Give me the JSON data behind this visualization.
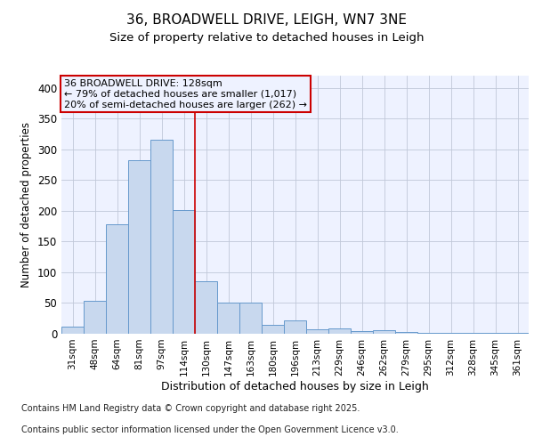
{
  "title1": "36, BROADWELL DRIVE, LEIGH, WN7 3NE",
  "title2": "Size of property relative to detached houses in Leigh",
  "xlabel": "Distribution of detached houses by size in Leigh",
  "ylabel": "Number of detached properties",
  "categories": [
    "31sqm",
    "48sqm",
    "64sqm",
    "81sqm",
    "97sqm",
    "114sqm",
    "130sqm",
    "147sqm",
    "163sqm",
    "180sqm",
    "196sqm",
    "213sqm",
    "229sqm",
    "246sqm",
    "262sqm",
    "279sqm",
    "295sqm",
    "312sqm",
    "328sqm",
    "345sqm",
    "361sqm"
  ],
  "bar_values": [
    11,
    54,
    178,
    282,
    315,
    202,
    85,
    51,
    50,
    15,
    22,
    7,
    8,
    5,
    6,
    3,
    2,
    1,
    1,
    1,
    1
  ],
  "bar_color": "#c8d8ee",
  "bar_edge_color": "#6699cc",
  "vline_color": "#cc0000",
  "vline_x": 5.5,
  "annotation_title": "36 BROADWELL DRIVE: 128sqm",
  "annotation_line1": "← 79% of detached houses are smaller (1,017)",
  "annotation_line2": "20% of semi-detached houses are larger (262) →",
  "annotation_box_color": "#cc0000",
  "background_color": "#ffffff",
  "plot_bg_color": "#eef2ff",
  "ylim": [
    0,
    420
  ],
  "yticks": [
    0,
    50,
    100,
    150,
    200,
    250,
    300,
    350,
    400
  ],
  "grid_color": "#c0c8d8",
  "footer_line1": "Contains HM Land Registry data © Crown copyright and database right 2025.",
  "footer_line2": "Contains public sector information licensed under the Open Government Licence v3.0."
}
